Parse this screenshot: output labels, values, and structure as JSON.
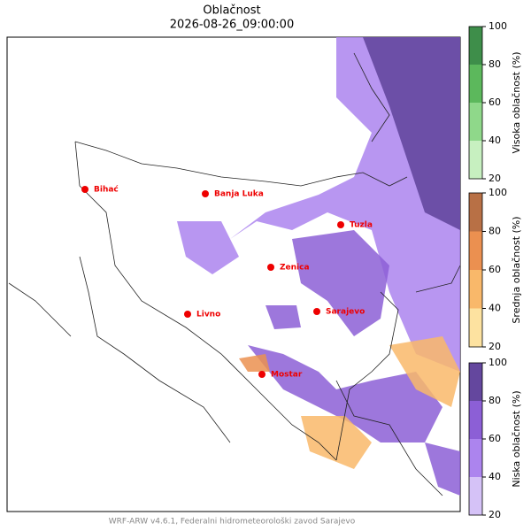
{
  "header": {
    "title": "Oblačnost",
    "subtitle": "2026-08-26_09:00:00"
  },
  "cities": [
    "Bihać",
    "Banja Luka",
    "Tuzla",
    "Zenica",
    "Livno",
    "Sarajevo",
    "Mostar"
  ],
  "colorbars": [
    {
      "label": "Visoka oblačnost (%)",
      "ticks": [
        20,
        40,
        60,
        80,
        100
      ],
      "colors": [
        "#c7f0c0",
        "#8fd88a",
        "#5cb85c",
        "#3e8e4a"
      ]
    },
    {
      "label": "Srednja oblačnost (%)",
      "ticks": [
        20,
        40,
        60,
        80,
        100
      ],
      "colors": [
        "#fde2a0",
        "#f9b86a",
        "#eb9050",
        "#b87045"
      ]
    },
    {
      "label": "Niska oblačnost (%)",
      "ticks": [
        20,
        40,
        60,
        80,
        100
      ],
      "colors": [
        "#d5c2f7",
        "#ac84ee",
        "#8c5fd6",
        "#64479e"
      ]
    }
  ],
  "footer": "WRF-ARW v4.6.1, Federalni hidrometeorološki zavod Sarajevo"
}
